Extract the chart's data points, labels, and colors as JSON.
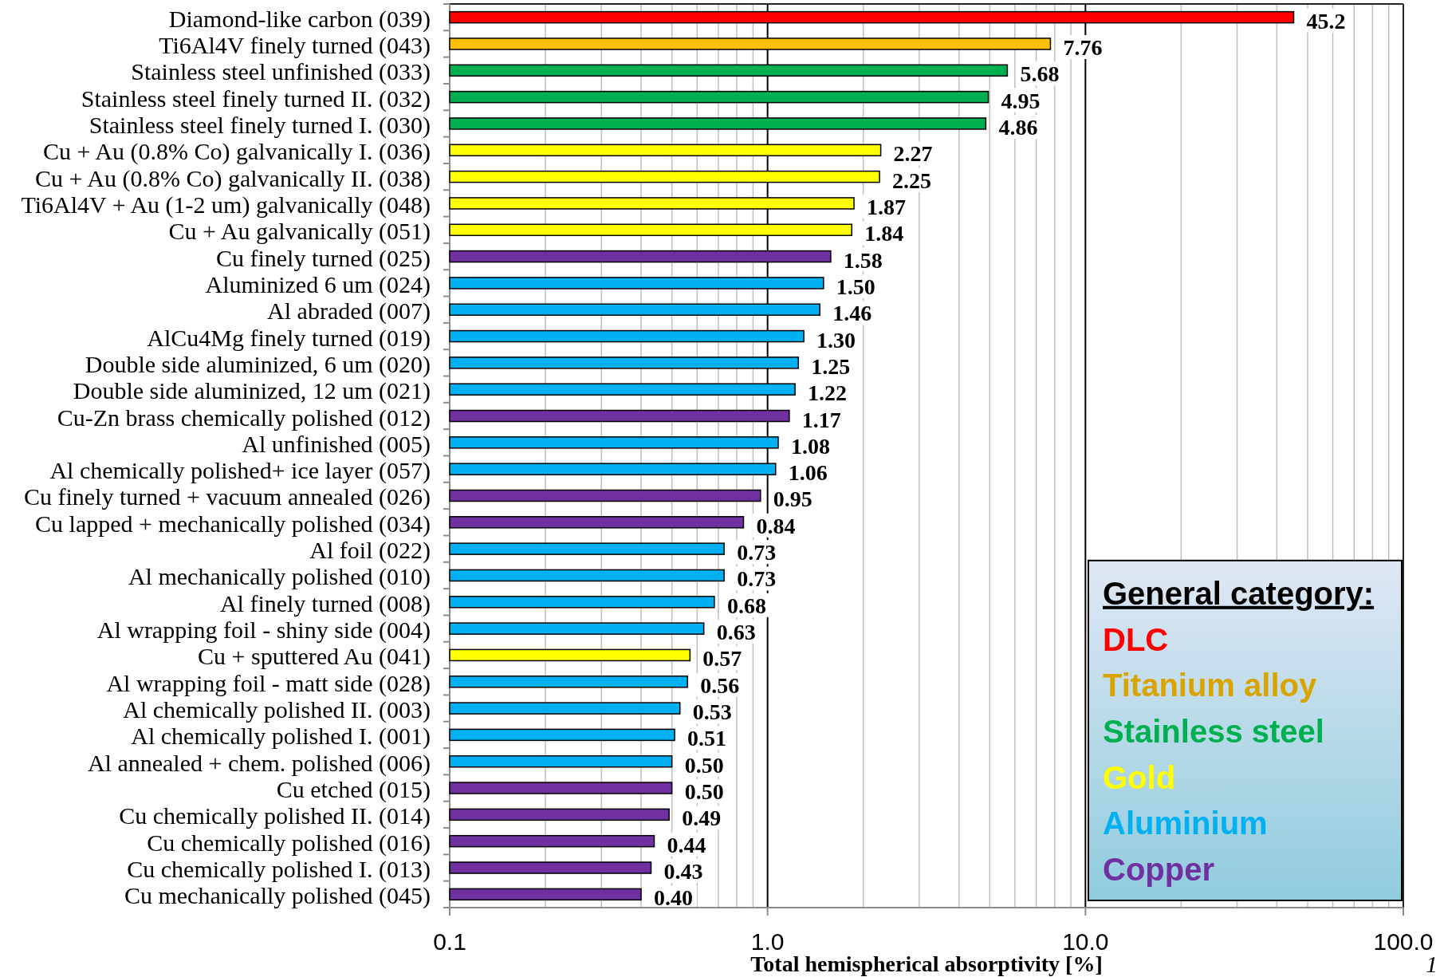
{
  "chart_data": {
    "type": "bar",
    "orientation": "horizontal",
    "stacked": true,
    "log": "x",
    "xlabel": "Total hemispherical absorptivity [%]",
    "legend_title": "General category:",
    "legend": "bottom right",
    "grid": "x",
    "annotations": [
      "1"
    ],
    "categories": [
      "Diamond-like carbon (039)",
      "Ti6Al4V finely turned (043)",
      "Stainless steel unfinished (033)",
      "Stainless steel finely turned II. (032)",
      "Stainless steel finely turned I. (030)",
      "Cu + Au (0.8% Co) galvanically I. (036)",
      "Cu + Au (0.8% Co) galvanically II. (038)",
      "Ti6Al4V + Au (1-2 um) galvanically (048)",
      "Cu + Au galvanically (051)",
      "Cu finely turned (025)",
      "Aluminized 6 um (024)",
      "Al abraded (007)",
      "AlCu4Mg finely turned (019)",
      "Double side aluminized, 6 um (020)",
      "Double side aluminized, 12 um (021)",
      "Cu-Zn brass chemically polished (012)",
      "Al unfinished (005)",
      "Al chemically polished+ ice layer (057)",
      "Cu finely turned + vacuum annealed (026)",
      "Cu lapped + mechanically polished (034)",
      "Al foil (022)",
      "Al mechanically polished (010)",
      "Al finely turned (008)",
      "Al wrapping foil - shiny side (004)",
      "Cu + sputtered Au (041)",
      "Al wrapping foil - matt side (028)",
      "Al chemically polished II. (003)",
      "Al chemically polished I. (001)",
      "Al annealed + chem. polished (006)",
      "Cu etched (015)",
      "Cu chemically polished II. (014)",
      "Cu chemically polished (016)",
      "Cu chemically polished I. (013)",
      "Cu mechanically polished (045)"
    ],
    "xlim": [
      0.1,
      100
    ],
    "xticks": [
      0.1,
      {
        "value": 0.2,
        "label": null
      },
      {
        "value": 0.3,
        "label": null
      },
      {
        "value": 0.4,
        "label": null
      },
      {
        "value": 0.5,
        "label": null
      },
      {
        "value": 0.6,
        "label": null
      },
      {
        "value": 0.7,
        "label": null
      },
      {
        "value": 0.8,
        "label": null
      },
      {
        "value": 0.9,
        "label": null
      },
      {
        "value": 1,
        "label": "1.0"
      },
      {
        "value": 2,
        "label": null
      },
      {
        "value": 3,
        "label": null
      },
      {
        "value": 4,
        "label": null
      },
      {
        "value": 5,
        "label": null
      },
      {
        "value": 6,
        "label": null
      },
      {
        "value": 7,
        "label": null
      },
      {
        "value": 8,
        "label": null
      },
      {
        "value": 9,
        "label": null
      },
      {
        "value": 10,
        "label": "10.0"
      },
      {
        "value": 20,
        "label": null
      },
      {
        "value": 30,
        "label": null
      },
      {
        "value": 40,
        "label": null
      },
      {
        "value": 50,
        "label": null
      },
      {
        "value": 60,
        "label": null
      },
      {
        "value": 70,
        "label": null
      },
      {
        "value": 80,
        "label": null
      },
      {
        "value": 90,
        "label": null
      },
      {
        "value": 100,
        "label": "100.0"
      }
    ],
    "series": [
      {
        "name": "DLC",
        "color": "#ff0000",
        "values": [
          45.2,
          null,
          null,
          null,
          null,
          null,
          null,
          null,
          null,
          null,
          null,
          null,
          null,
          null,
          null,
          null,
          null,
          null,
          null,
          null,
          null,
          null,
          null,
          null,
          null,
          null,
          null,
          null,
          null,
          null,
          null,
          null,
          null,
          null
        ],
        "value_labels": [
          "45.2",
          null,
          null,
          null,
          null,
          null,
          null,
          null,
          null,
          null,
          null,
          null,
          null,
          null,
          null,
          null,
          null,
          null,
          null,
          null,
          null,
          null,
          null,
          null,
          null,
          null,
          null,
          null,
          null,
          null,
          null,
          null,
          null,
          null
        ]
      },
      {
        "name": "Titanium alloy",
        "color": "#ffc000",
        "values": [
          null,
          7.76,
          null,
          null,
          null,
          null,
          null,
          null,
          null,
          null,
          null,
          null,
          null,
          null,
          null,
          null,
          null,
          null,
          null,
          null,
          null,
          null,
          null,
          null,
          null,
          null,
          null,
          null,
          null,
          null,
          null,
          null,
          null,
          null
        ],
        "value_labels": [
          null,
          "7.76",
          null,
          null,
          null,
          null,
          null,
          null,
          null,
          null,
          null,
          null,
          null,
          null,
          null,
          null,
          null,
          null,
          null,
          null,
          null,
          null,
          null,
          null,
          null,
          null,
          null,
          null,
          null,
          null,
          null,
          null,
          null,
          null
        ]
      },
      {
        "name": "Stainless steel",
        "color": "#00b050",
        "values": [
          null,
          null,
          5.68,
          4.95,
          4.86,
          null,
          null,
          null,
          null,
          null,
          null,
          null,
          null,
          null,
          null,
          null,
          null,
          null,
          null,
          null,
          null,
          null,
          null,
          null,
          null,
          null,
          null,
          null,
          null,
          null,
          null,
          null,
          null,
          null
        ],
        "value_labels": [
          null,
          null,
          "5.68",
          "4.95",
          "4.86",
          null,
          null,
          null,
          null,
          null,
          null,
          null,
          null,
          null,
          null,
          null,
          null,
          null,
          null,
          null,
          null,
          null,
          null,
          null,
          null,
          null,
          null,
          null,
          null,
          null,
          null,
          null,
          null,
          null
        ]
      },
      {
        "name": "Gold",
        "color": "#ffff00",
        "values": [
          null,
          null,
          null,
          null,
          null,
          2.27,
          2.25,
          1.87,
          1.84,
          null,
          null,
          null,
          null,
          null,
          null,
          null,
          null,
          null,
          null,
          null,
          null,
          null,
          null,
          null,
          0.57,
          null,
          null,
          null,
          null,
          null,
          null,
          null,
          null,
          null
        ],
        "value_labels": [
          null,
          null,
          null,
          null,
          null,
          "2.27",
          "2.25",
          "1.87",
          "1.84",
          null,
          null,
          null,
          null,
          null,
          null,
          null,
          null,
          null,
          null,
          null,
          null,
          null,
          null,
          null,
          "0.57",
          null,
          null,
          null,
          null,
          null,
          null,
          null,
          null,
          null
        ]
      },
      {
        "name": "Aluminium",
        "color": "#00b0f0",
        "values": [
          null,
          null,
          null,
          null,
          null,
          null,
          null,
          null,
          null,
          null,
          1.5,
          1.46,
          1.3,
          1.25,
          1.22,
          null,
          1.08,
          1.06,
          null,
          null,
          0.73,
          0.73,
          0.68,
          0.63,
          null,
          0.56,
          0.53,
          0.51,
          0.5,
          null,
          null,
          null,
          null,
          null
        ],
        "value_labels": [
          null,
          null,
          null,
          null,
          null,
          null,
          null,
          null,
          null,
          null,
          "1.50",
          "1.46",
          "1.30",
          "1.25",
          "1.22",
          null,
          "1.08",
          "1.06",
          null,
          null,
          "0.73",
          "0.73",
          "0.68",
          "0.63",
          null,
          "0.56",
          "0.53",
          "0.51",
          "0.50",
          null,
          null,
          null,
          null,
          null
        ]
      },
      {
        "name": "Copper",
        "color": "#7030a0",
        "values": [
          null,
          null,
          null,
          null,
          null,
          null,
          null,
          null,
          null,
          1.58,
          null,
          null,
          null,
          null,
          null,
          1.17,
          null,
          null,
          0.95,
          0.84,
          null,
          null,
          null,
          null,
          null,
          null,
          null,
          null,
          null,
          0.5,
          0.49,
          0.44,
          0.43,
          0.4
        ],
        "value_labels": [
          null,
          null,
          null,
          null,
          null,
          null,
          null,
          null,
          null,
          "1.58",
          null,
          null,
          null,
          null,
          null,
          "1.17",
          null,
          null,
          "0.95",
          "0.84",
          null,
          null,
          null,
          null,
          null,
          null,
          null,
          null,
          null,
          "0.50",
          "0.49",
          "0.44",
          "0.43",
          "0.40"
        ]
      }
    ]
  }
}
